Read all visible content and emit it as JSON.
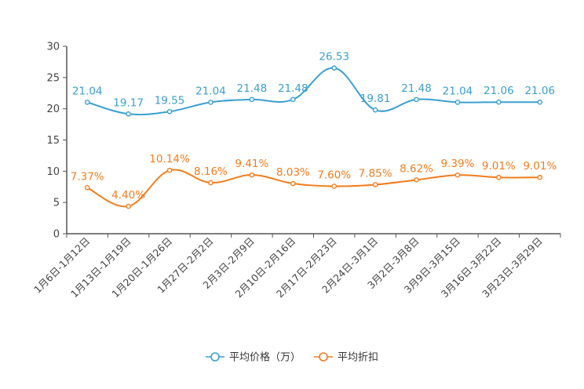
{
  "chart_data": {
    "type": "line",
    "title": "",
    "xlabel": "",
    "ylabel": "",
    "ylim": [
      0,
      30
    ],
    "yticks": [
      0,
      5,
      10,
      15,
      20,
      25,
      30
    ],
    "grid": false,
    "legend_position": "bottom-center",
    "categories": [
      "1月6日-1月12日",
      "1月13日-1月19日",
      "1月20日-1月26日",
      "1月27日-2月2日",
      "2月3日-2月9日",
      "2月10日-2月16日",
      "2月17日-2月23日",
      "2月24日-3月1日",
      "3月2日-3月8日",
      "3月9日-3月15日",
      "3月16日-3月22日",
      "3月23日-3月29日"
    ],
    "series": [
      {
        "name": "平均价格（万）",
        "color": "#3a9fd0",
        "values": [
          21.04,
          19.17,
          19.55,
          21.04,
          21.48,
          21.48,
          26.53,
          19.81,
          21.48,
          21.04,
          21.06,
          21.06
        ],
        "labels": [
          "21.04",
          "19.17",
          "19.55",
          "21.04",
          "21.48",
          "21.48",
          "26.53",
          "19.81",
          "21.48",
          "21.04",
          "21.06",
          "21.06"
        ]
      },
      {
        "name": "平均折扣",
        "color": "#f27c1b",
        "values": [
          7.37,
          4.4,
          10.14,
          8.16,
          9.41,
          8.03,
          7.6,
          7.85,
          8.62,
          9.39,
          9.01,
          9.01
        ],
        "labels": [
          "7.37%",
          "4.40%",
          "10.14%",
          "8.16%",
          "9.41%",
          "8.03%",
          "7.60%",
          "7.85%",
          "8.62%",
          "9.39%",
          "9.01%",
          "9.01%"
        ]
      }
    ]
  }
}
